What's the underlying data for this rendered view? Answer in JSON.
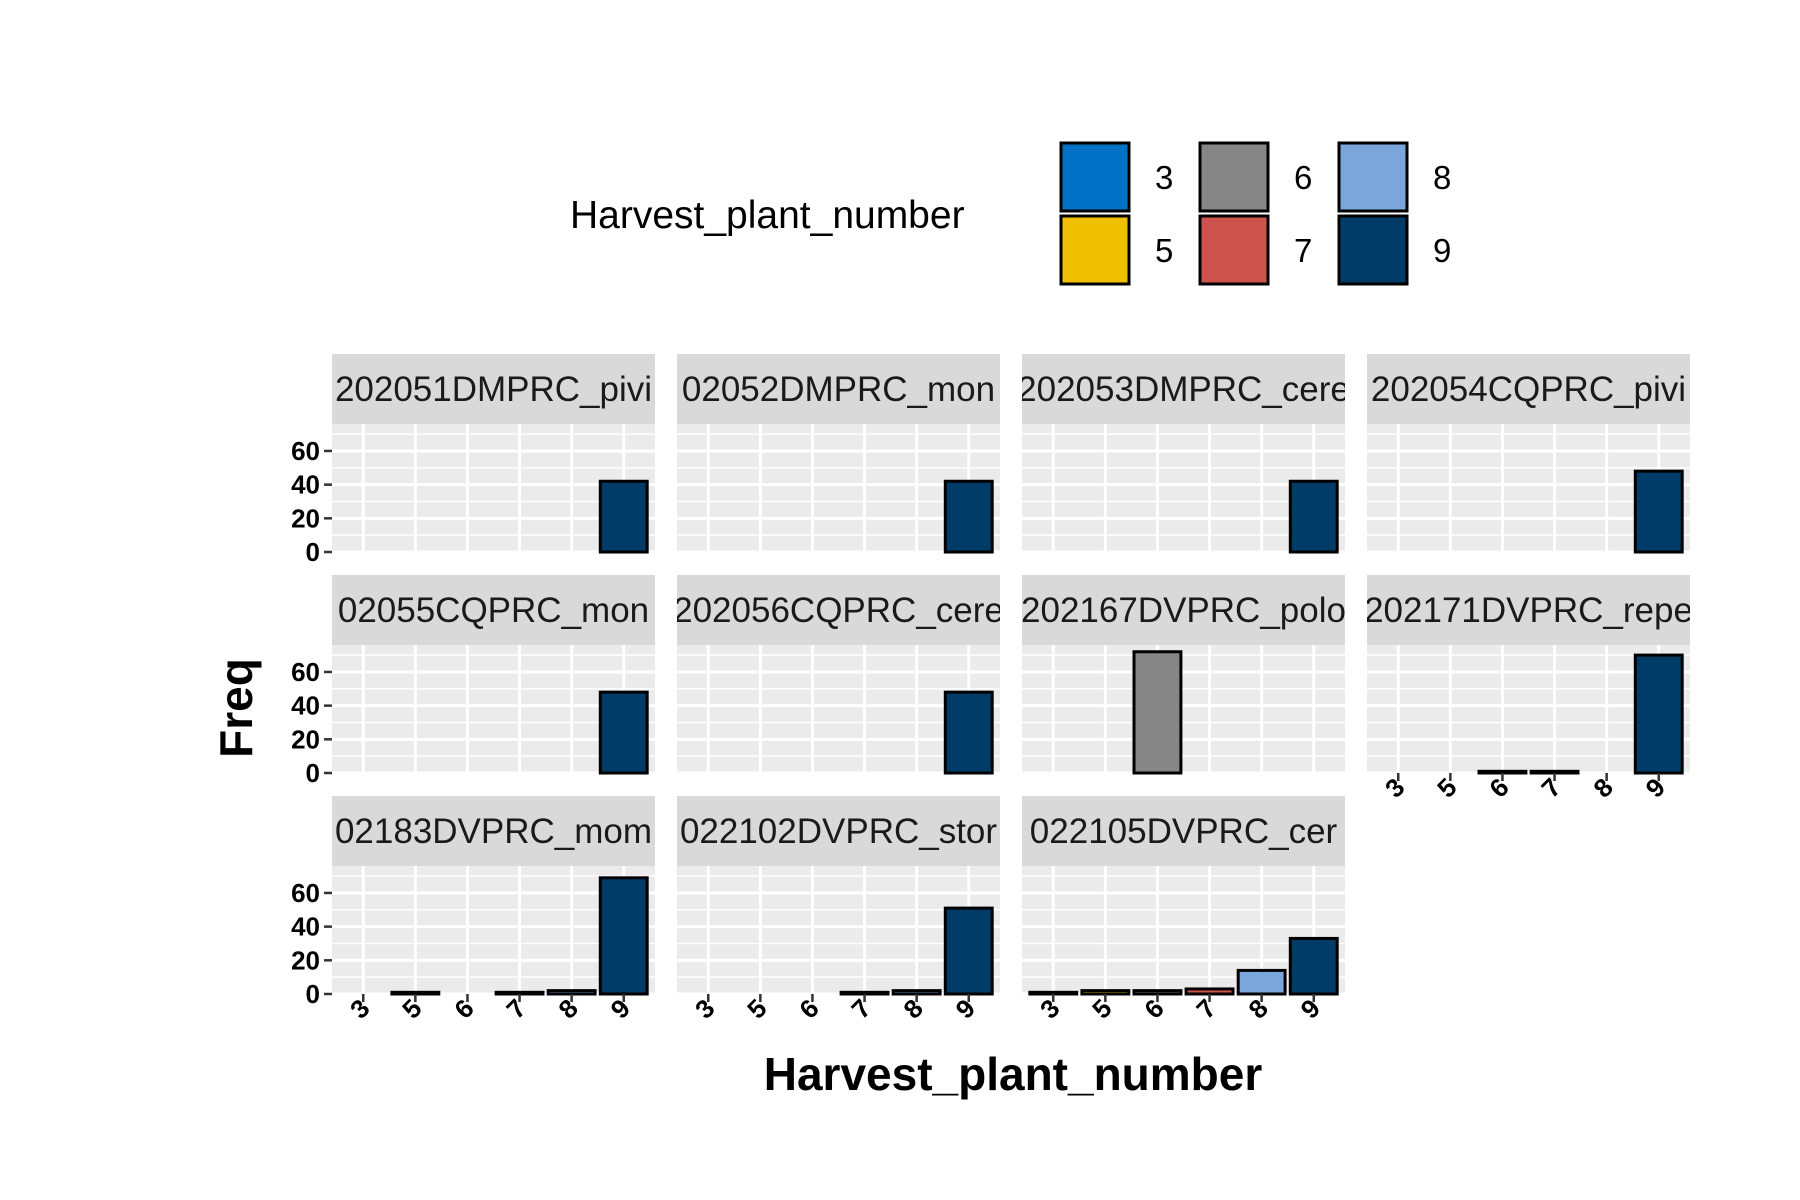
{
  "chart_data": {
    "type": "bar",
    "faceted": true,
    "xlabel": "Harvest_plant_number",
    "ylabel": "Freq",
    "categories": [
      "3",
      "5",
      "6",
      "7",
      "8",
      "9"
    ],
    "y_ticks": [
      "0",
      "20",
      "40",
      "60"
    ],
    "ylim": [
      0,
      76
    ],
    "grid": true,
    "legend": {
      "title": "Harvest_plant_number",
      "position": "top",
      "entries": [
        {
          "label": "3",
          "color": "#0072c6"
        },
        {
          "label": "5",
          "color": "#efc000"
        },
        {
          "label": "6",
          "color": "#868686"
        },
        {
          "label": "7",
          "color": "#cd534c"
        },
        {
          "label": "8",
          "color": "#7aa6dc"
        },
        {
          "label": "9",
          "color": "#003c67"
        }
      ]
    },
    "panels": [
      {
        "strip": "202051DMPRC_pivi",
        "values": [
          0,
          0,
          0,
          0,
          0,
          42
        ]
      },
      {
        "strip": "02052DMPRC_mon",
        "values": [
          0,
          0,
          0,
          0,
          0,
          42
        ]
      },
      {
        "strip": "202053DMPRC_cere",
        "values": [
          0,
          0,
          0,
          0,
          0,
          42
        ]
      },
      {
        "strip": "202054CQPRC_pivi",
        "values": [
          0,
          0,
          0,
          0,
          0,
          48
        ]
      },
      {
        "strip": "02055CQPRC_mon",
        "values": [
          0,
          0,
          0,
          0,
          0,
          48
        ]
      },
      {
        "strip": "202056CQPRC_cere",
        "values": [
          0,
          0,
          0,
          0,
          0,
          48
        ]
      },
      {
        "strip": "202167DVPRC_polo",
        "values": [
          0,
          0,
          72,
          0,
          0,
          0
        ]
      },
      {
        "strip": "202171DVPRC_repe",
        "values": [
          0,
          0,
          1,
          1,
          0,
          70
        ]
      },
      {
        "strip": "02183DVPRC_mom",
        "values": [
          0,
          1,
          0,
          1,
          2,
          69
        ]
      },
      {
        "strip": "022102DVPRC_stor",
        "values": [
          0,
          0,
          0,
          1,
          2,
          51
        ]
      },
      {
        "strip": "022105DVPRC_cer",
        "values": [
          1,
          2,
          2,
          3,
          14,
          33
        ]
      }
    ]
  }
}
